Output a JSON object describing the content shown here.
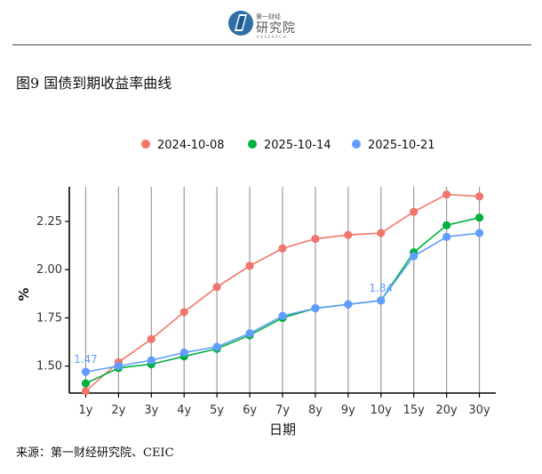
{
  "header": {
    "logo_top": "第一财经",
    "logo_main": "研究院",
    "logo_sub": "RESEARCH",
    "icon": "book-logo-icon"
  },
  "figure": {
    "title": "图9 国债到期收益率曲线",
    "source": "来源：第一财经研究院、CEIC"
  },
  "chart_data": {
    "type": "line",
    "title": "",
    "xlabel": "日期",
    "ylabel": "%",
    "categories": [
      "1y",
      "2y",
      "3y",
      "4y",
      "5y",
      "6y",
      "7y",
      "8y",
      "9y",
      "10y",
      "15y",
      "20y",
      "30y"
    ],
    "ylim": [
      1.36,
      2.43
    ],
    "yticks": [
      1.5,
      1.75,
      2.0,
      2.25
    ],
    "ytick_labels": [
      "1.50",
      "1.75",
      "2.00",
      "2.25"
    ],
    "legend_position": "top",
    "grid": "vertical",
    "series": [
      {
        "name": "2024-10-08",
        "color": "#F0766D",
        "values": [
          1.37,
          1.52,
          1.64,
          1.78,
          1.91,
          2.02,
          2.11,
          2.16,
          2.18,
          2.19,
          2.3,
          2.39,
          2.38
        ]
      },
      {
        "name": "2025-10-14",
        "color": "#00B13E",
        "values": [
          1.41,
          1.49,
          1.51,
          1.55,
          1.59,
          1.66,
          1.75,
          1.8,
          1.82,
          1.84,
          2.09,
          2.23,
          2.27
        ]
      },
      {
        "name": "2025-10-21",
        "color": "#619CFF",
        "values": [
          1.47,
          1.5,
          1.53,
          1.57,
          1.6,
          1.67,
          1.76,
          1.8,
          1.82,
          1.84,
          2.07,
          2.17,
          2.19
        ]
      }
    ],
    "annotations": [
      {
        "series": 2,
        "index": 0,
        "text": "1.47"
      },
      {
        "series": 2,
        "index": 9,
        "text": "1.84"
      }
    ]
  }
}
